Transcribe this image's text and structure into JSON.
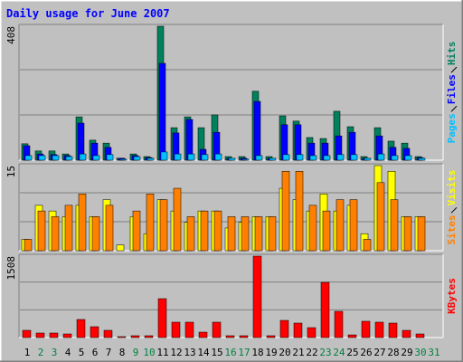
{
  "chart_data": [
    {
      "type": "bar",
      "title": "Daily usage for June 2007",
      "ylim": [
        0,
        408
      ],
      "yticks": [
        408
      ],
      "series": [
        {
          "name": "Hits",
          "color": "#00805c",
          "values": [
            50,
            28,
            28,
            19,
            132,
            61,
            52,
            6,
            19,
            11,
            408,
            99,
            132,
            99,
            138,
            11,
            11,
            210,
            11,
            135,
            119,
            69,
            66,
            149,
            102,
            11,
            99,
            58,
            52,
            11,
            0
          ]
        },
        {
          "name": "Files",
          "color": "#0000ff",
          "values": [
            44,
            19,
            17,
            14,
            113,
            52,
            39,
            6,
            14,
            8,
            295,
            83,
            124,
            33,
            85,
            6,
            6,
            179,
            6,
            108,
            108,
            52,
            52,
            74,
            85,
            6,
            74,
            39,
            36,
            8,
            0
          ]
        },
        {
          "name": "Pages",
          "color": "#00c0ff",
          "values": [
            14,
            14,
            14,
            11,
            19,
            14,
            17,
            3,
            11,
            6,
            25,
            19,
            19,
            17,
            19,
            6,
            3,
            14,
            6,
            17,
            17,
            14,
            14,
            17,
            17,
            6,
            19,
            14,
            14,
            6,
            0
          ]
        }
      ]
    },
    {
      "type": "bar",
      "ylim": [
        0,
        15
      ],
      "yticks": [
        15
      ],
      "series": [
        {
          "name": "Visits",
          "color": "#ffff00",
          "values": [
            2,
            8,
            7,
            6,
            8,
            6,
            9,
            1,
            6,
            3,
            9,
            7,
            5,
            7,
            7,
            4,
            5,
            6,
            6,
            11,
            9,
            7,
            10,
            7,
            8,
            3,
            15,
            14,
            6,
            6,
            0
          ]
        },
        {
          "name": "Sites",
          "color": "#ff8000",
          "values": [
            2,
            7,
            6,
            8,
            10,
            6,
            8,
            0,
            7,
            10,
            9,
            11,
            6,
            7,
            7,
            6,
            6,
            6,
            6,
            14,
            14,
            8,
            7,
            9,
            9,
            2,
            12,
            9,
            6,
            6,
            0
          ]
        }
      ]
    },
    {
      "type": "bar",
      "ylim": [
        0,
        1508
      ],
      "yticks": [
        1508
      ],
      "categories": [
        "1",
        "2",
        "3",
        "4",
        "5",
        "6",
        "7",
        "8",
        "9",
        "10",
        "11",
        "12",
        "13",
        "14",
        "15",
        "16",
        "17",
        "18",
        "19",
        "20",
        "21",
        "22",
        "23",
        "24",
        "25",
        "26",
        "27",
        "28",
        "29",
        "30",
        "31"
      ],
      "label_colors": [
        "#000000",
        "#008040",
        "#008040",
        "#000000",
        "#000000",
        "#000000",
        "#000000",
        "#000000",
        "#008040",
        "#008040",
        "#000000",
        "#000000",
        "#000000",
        "#000000",
        "#000000",
        "#008040",
        "#008040",
        "#000000",
        "#000000",
        "#000000",
        "#000000",
        "#000000",
        "#008040",
        "#008040",
        "#000000",
        "#000000",
        "#000000",
        "#000000",
        "#000000",
        "#008040",
        "#008040"
      ],
      "series": [
        {
          "name": "KBytes",
          "color": "#ff0000",
          "values": [
            134,
            84,
            84,
            67,
            335,
            201,
            134,
            17,
            34,
            34,
            720,
            285,
            285,
            100,
            285,
            34,
            34,
            1508,
            34,
            318,
            268,
            184,
            1022,
            486,
            50,
            302,
            285,
            268,
            134,
            67,
            0
          ]
        }
      ]
    }
  ]
}
